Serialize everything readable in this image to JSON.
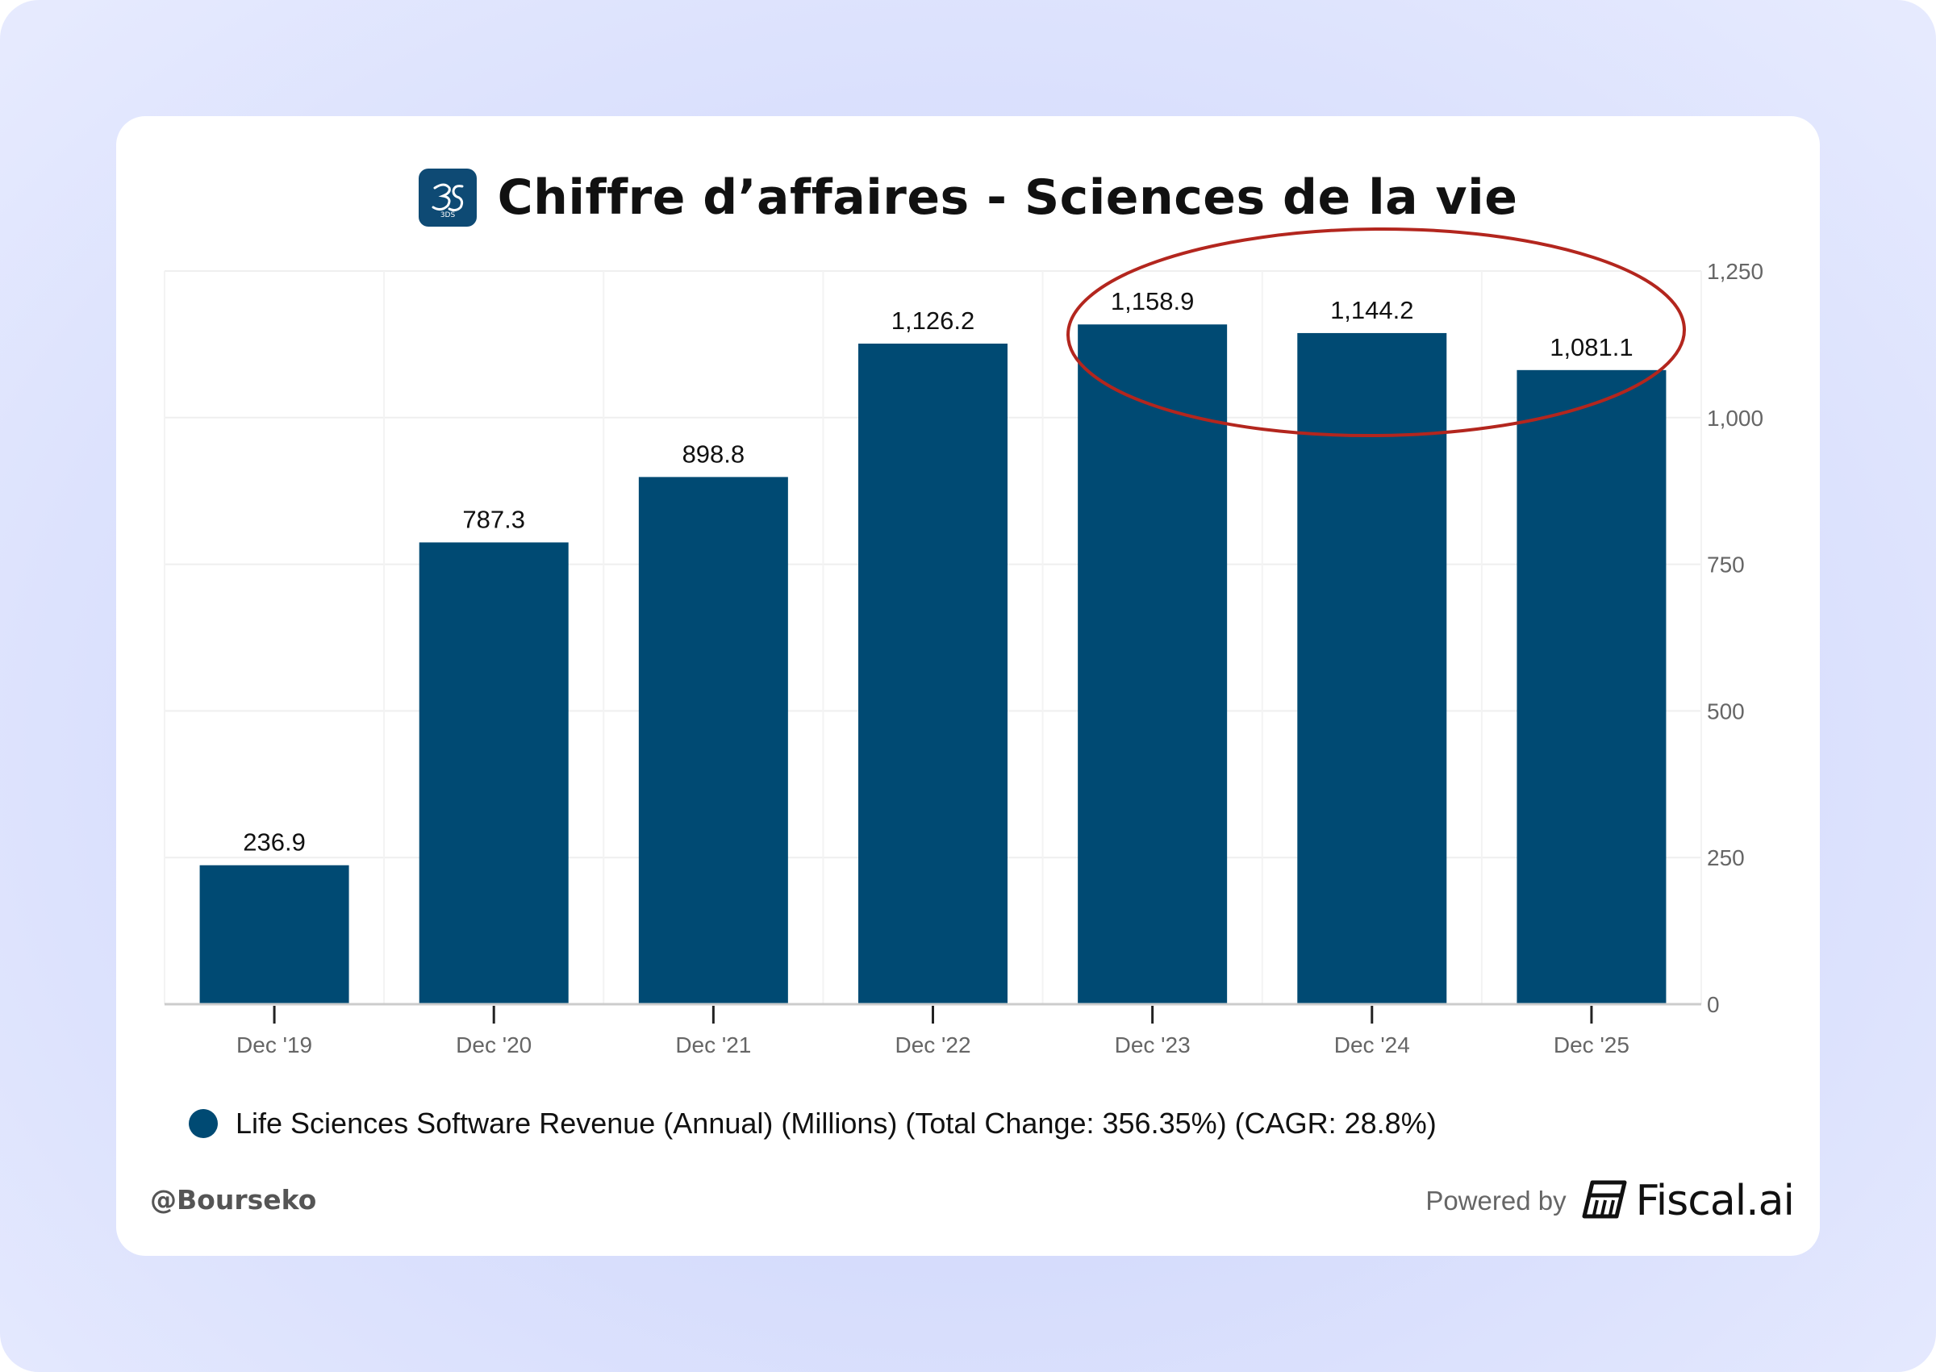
{
  "header": {
    "title": "Chiffre d’affaires - Sciences de la vie",
    "logo_icon": "3ds-logo-icon",
    "logo_text": "3DS"
  },
  "chart_data": {
    "type": "bar",
    "categories": [
      "Dec '19",
      "Dec '20",
      "Dec '21",
      "Dec '22",
      "Dec '23",
      "Dec '24",
      "Dec '25"
    ],
    "values": [
      236.9,
      787.3,
      898.8,
      1126.2,
      1158.9,
      1144.2,
      1081.1
    ],
    "value_labels": [
      "236.9",
      "787.3",
      "898.8",
      "1,126.2",
      "1,158.9",
      "1,144.2",
      "1,081.1"
    ],
    "y_ticks": [
      0,
      250,
      500,
      750,
      1000,
      1250
    ],
    "y_tick_labels": [
      "0",
      "250",
      "500",
      "750",
      "1,000",
      "1,250"
    ],
    "ylim": [
      0,
      1250
    ],
    "y_axis_side": "right",
    "grid": true,
    "bar_color": "#004a73",
    "annotation": {
      "type": "ellipse",
      "color": "#b3261e",
      "highlights": [
        "Dec '23",
        "Dec '24",
        "Dec '25"
      ]
    },
    "series": [
      {
        "name": "Life Sciences Software Revenue (Annual) (Millions) (Total Change: 356.35%) (CAGR: 28.8%)"
      }
    ]
  },
  "legend": {
    "label": "Life Sciences Software Revenue (Annual) (Millions) (Total Change: 356.35%) (CAGR: 28.8%)",
    "color": "#004a73"
  },
  "footer": {
    "handle": "@Bourseko",
    "powered_by": "Powered by",
    "brand": "Fiscal.ai",
    "brand_icon": "fiscal-ai-logo-icon"
  }
}
